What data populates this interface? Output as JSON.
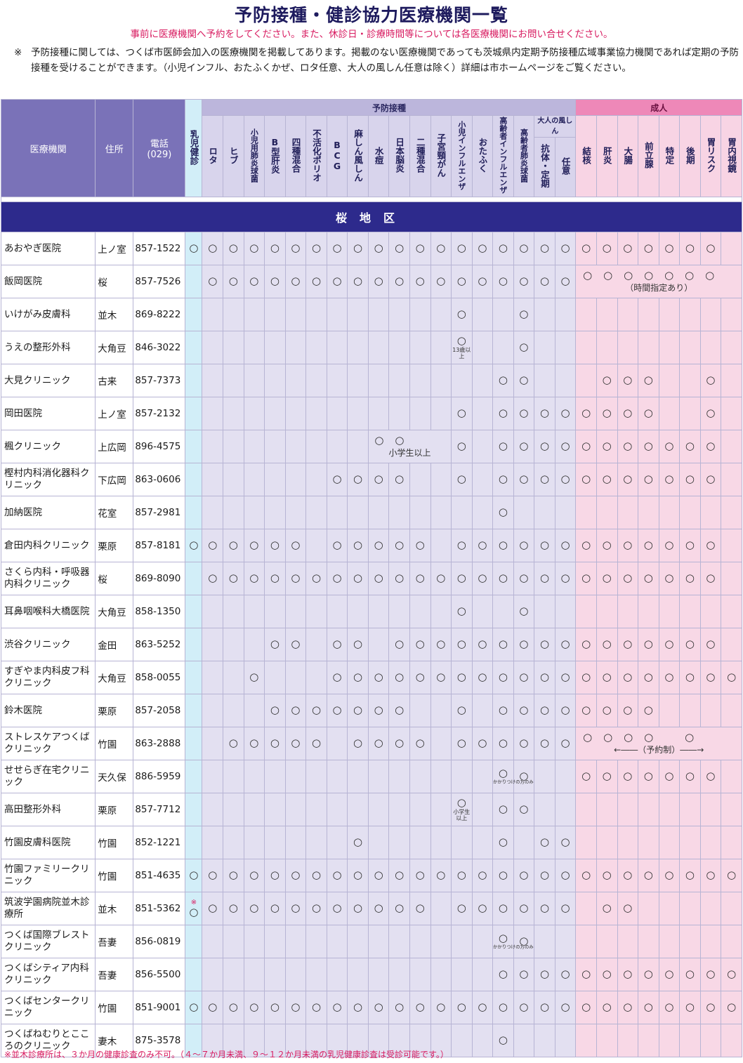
{
  "title": "予防接種・健診協力医療機関一覧",
  "note_reserve": "事前に医療機関へ予約をしてください。また、休診日・診療時間等については各医療機関にお問い合せください。",
  "note_mark": "※",
  "note_detail": "予防接種に関しては、つくば市医師会加入の医療機関を掲載してあります。掲載のない医療機関であっても茨城県内定期予防接種広域事業協力機関であれば定期の予防接種を受けることができます。（小児インフル、おたふくかぜ、ロタ任意、大人の風しん任意は除く）詳細は市ホームページをご覧ください。",
  "header": {
    "clinic": "医療機関",
    "address": "住所",
    "phone": "電話",
    "phone_area": "(029)",
    "group_vaccine": "予防接種",
    "group_adult": "成人",
    "infant": "乳児健診",
    "otona_group": "大人の風しん",
    "vaccines": [
      "ロタ",
      "ヒブ",
      "小児用肺炎球菌",
      "B型肝炎",
      "四種混合",
      "不活化ポリオ",
      "BCG",
      "麻しん風しん",
      "水痘",
      "日本脳炎",
      "二種混合",
      "子宮頸がん",
      "小児インフルエンザ",
      "おたふく",
      "高齢者インフルエンザ",
      "高齢者肺炎球菌",
      "抗体・定期",
      "任意"
    ],
    "adult": [
      "結核",
      "肝炎",
      "大腸",
      "前立腺",
      "特定",
      "後期",
      "胃リスク",
      "胃内視鏡"
    ]
  },
  "district": "桜地区",
  "mark": "○",
  "rows": [
    {
      "name": "あおやぎ医院",
      "addr": "上ノ室",
      "tel": "857-1522",
      "infant": "○",
      "v": "111111111111111111",
      "a": "11111110"
    },
    {
      "name": "飯岡医院",
      "addr": "桜",
      "tel": "857-7526",
      "infant": "",
      "v": "111111111111111111",
      "a": "11111110",
      "adult_note": "（時間指定あり）"
    },
    {
      "name": "いけがみ皮膚科",
      "addr": "並木",
      "tel": "869-8222",
      "infant": "",
      "v": "000000000000100100",
      "a": "00000000"
    },
    {
      "name": "うえの整形外科",
      "addr": "大角豆",
      "tel": "846-3022",
      "infant": "",
      "v": "000000000000100100",
      "a": "00000000",
      "sub_note": "13歳以上"
    },
    {
      "name": "大見クリニック",
      "addr": "古来",
      "tel": "857-7373",
      "infant": "",
      "v": "000000000000001100",
      "a": "01110010"
    },
    {
      "name": "岡田医院",
      "addr": "上ノ室",
      "tel": "857-2132",
      "infant": "",
      "v": "000000000000101111",
      "a": "11110010"
    },
    {
      "name": "楓クリニック",
      "addr": "上広岡",
      "tel": "896-4575",
      "infant": "",
      "v": "000000001100101111",
      "a": "11111110",
      "span_note": "小学生以上"
    },
    {
      "name": "樫村内科消化器科クリニック",
      "addr": "下広岡",
      "tel": "863-0606",
      "infant": "",
      "v": "000000111100101111",
      "a": "11111110"
    },
    {
      "name": "加納医院",
      "addr": "花室",
      "tel": "857-2981",
      "infant": "",
      "v": "000000000000001000",
      "a": "00000000"
    },
    {
      "name": "倉田内科クリニック",
      "addr": "栗原",
      "tel": "857-8181",
      "infant": "○",
      "v": "111110111110111111",
      "a": "11111110"
    },
    {
      "name": "さくら内科・呼吸器内科クリニック",
      "addr": "桜",
      "tel": "869-8090",
      "infant": "",
      "v": "111111111111111111",
      "a": "11111110"
    },
    {
      "name": "耳鼻咽喉科大橋医院",
      "addr": "大角豆",
      "tel": "858-1350",
      "infant": "",
      "v": "000000000000100100",
      "a": "00000000"
    },
    {
      "name": "渋谷クリニック",
      "addr": "金田",
      "tel": "863-5252",
      "infant": "",
      "v": "000110110111111111",
      "a": "11111110"
    },
    {
      "name": "すぎやま内科皮フ科クリニック",
      "addr": "大角豆",
      "tel": "858-0055",
      "infant": "",
      "v": "001000111111111111",
      "a": "11111111"
    },
    {
      "name": "鈴木医院",
      "addr": "栗原",
      "tel": "857-2058",
      "infant": "",
      "v": "000111111100101111",
      "a": "11110000"
    },
    {
      "name": "ストレスケアつくばクリニック",
      "addr": "竹園",
      "tel": "863-2888",
      "infant": "",
      "v": "011111011110111111",
      "a": "11110100",
      "adult_note": "←――（予約制）――→"
    },
    {
      "name": "せせらぎ在宅クリニック",
      "addr": "天久保",
      "tel": "886-5959",
      "infant": "",
      "v": "000000000000001100",
      "a": "11111110",
      "sub_note": "かかりつけの方のみ"
    },
    {
      "name": "高田整形外科",
      "addr": "栗原",
      "tel": "857-7712",
      "infant": "",
      "v": "000000000000101100",
      "a": "00000000",
      "sub_note": "小学生以上"
    },
    {
      "name": "竹園皮膚科医院",
      "addr": "竹園",
      "tel": "852-1221",
      "infant": "",
      "v": "000000010000001011",
      "a": "00000000"
    },
    {
      "name": "竹園ファミリークリニック",
      "addr": "竹園",
      "tel": "851-4635",
      "infant": "○",
      "v": "111111111111111111",
      "a": "11111111"
    },
    {
      "name": "筑波学園病院並木診療所",
      "addr": "並木",
      "tel": "851-5362",
      "infant": "○",
      "infant_note": "※",
      "v": "111111111110111111",
      "a": "01100000"
    },
    {
      "name": "つくば国際ブレストクリニック",
      "addr": "吾妻",
      "tel": "856-0819",
      "infant": "",
      "v": "000000000000001100",
      "a": "00000000",
      "sub_note": "かかりつけの方のみ"
    },
    {
      "name": "つくばシティア内科クリニック",
      "addr": "吾妻",
      "tel": "856-5500",
      "infant": "",
      "v": "000000000000001111",
      "a": "11111111"
    },
    {
      "name": "つくばセンタークリニック",
      "addr": "竹園",
      "tel": "851-9001",
      "infant": "○",
      "v": "111111111111111111",
      "a": "11111111"
    },
    {
      "name": "つくばねむりとこころのクリニック",
      "addr": "妻木",
      "tel": "875-3578",
      "infant": "",
      "v": "000000000000001000",
      "a": "00000000"
    }
  ],
  "footer": "※並木診療所は、３か月の健康診査のみ不可。（４～７か月未満、９～１２か月未満の乳児健康診査は受診可能です。）",
  "colors": {
    "header": "#7a72b8",
    "district": "#2d2a8c",
    "vaccine_cell": "#e3e0f1",
    "adult_cell": "#f8d8e6",
    "infant_cell": "#d2eef8",
    "accent": "#d81b60"
  }
}
